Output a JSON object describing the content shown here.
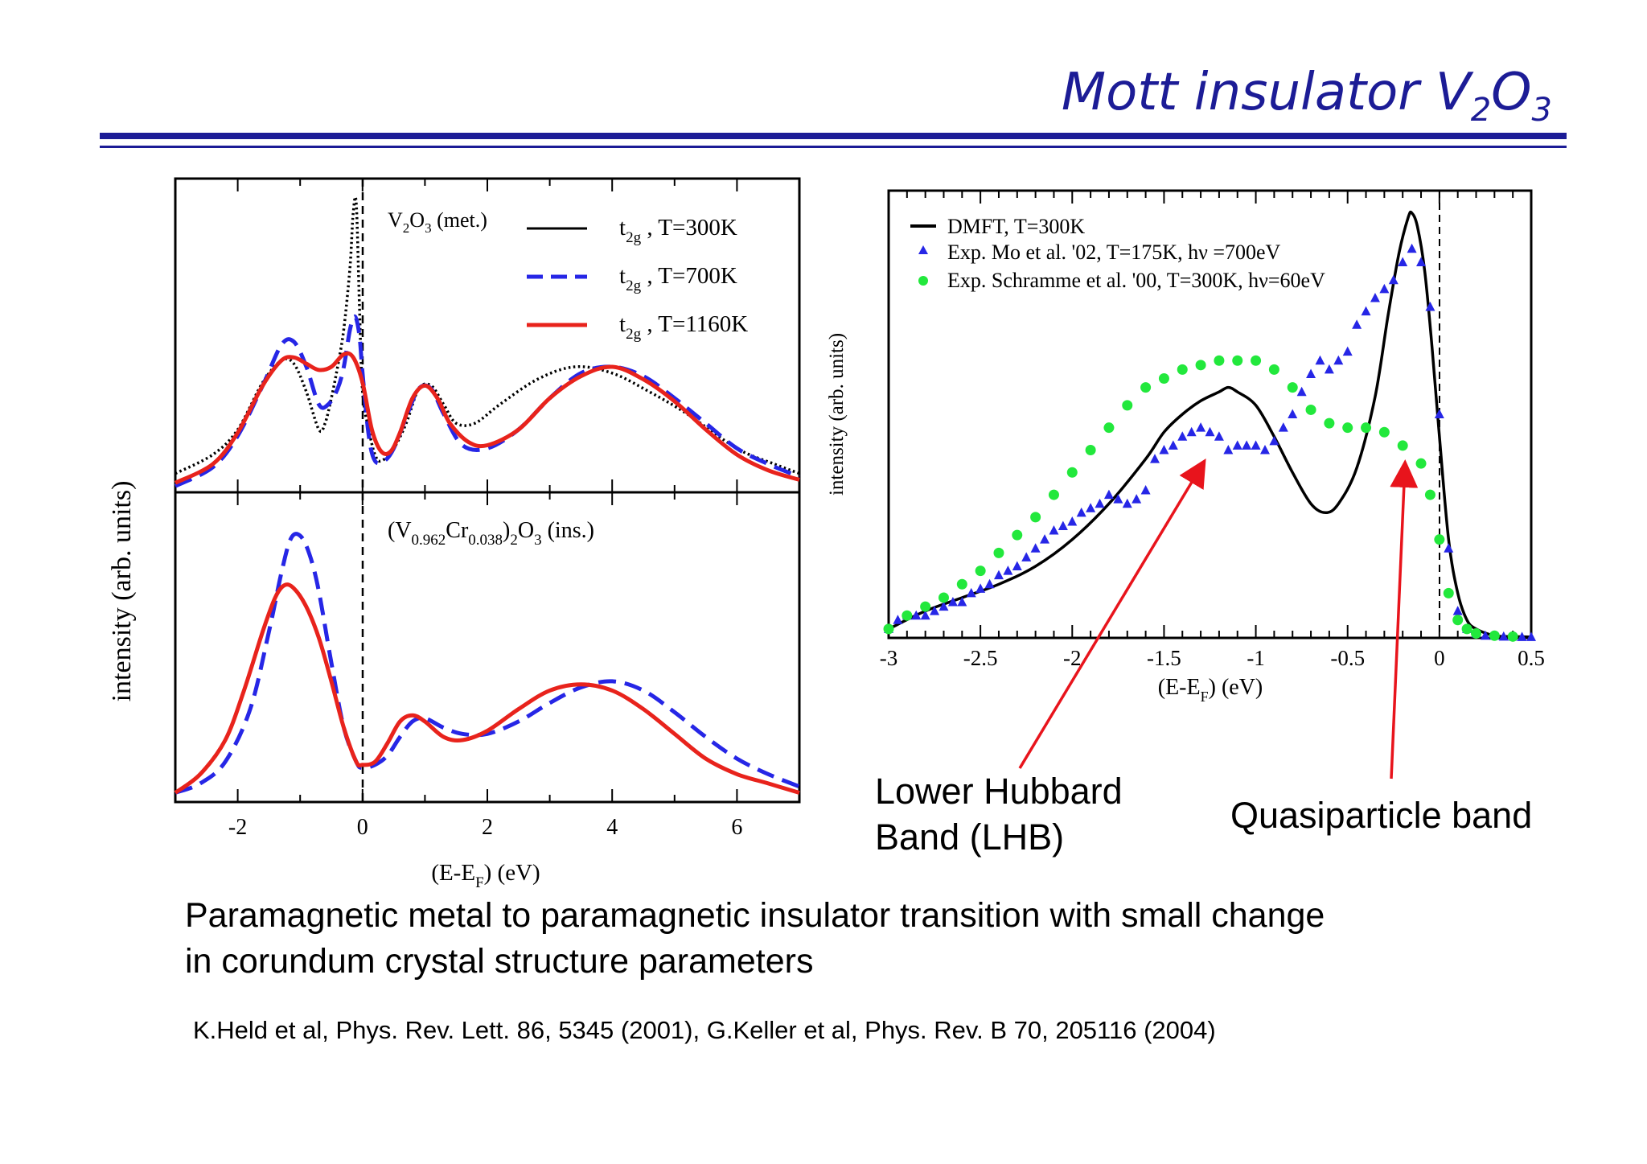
{
  "slide": {
    "title_main": "Mott insulator V",
    "title_sub1": "2",
    "title_mid": "O",
    "title_sub2": "3",
    "callout_lhb_line1": "Lower Hubbard",
    "callout_lhb_line2": "Band (LHB)",
    "callout_qp": "Quasiparticle  band",
    "caption_line1": "Paramagnetic metal to paramagnetic insulator transition with small change",
    "caption_line2": "in corundum crystal structure parameters",
    "reference": "K.Held et al, Phys. Rev. Lett. 86, 5345 (2001), G.Keller et al, Phys. Rev. B 70, 205116 (2004)",
    "colors": {
      "title": "#1c1c96",
      "arrow": "#e8141c"
    }
  },
  "chart_data": [
    {
      "type": "line",
      "panel": "top",
      "ylabel": "intensity (arb. units)",
      "xlim": [
        -3,
        7
      ],
      "ylim": [
        0,
        1
      ],
      "annotation": {
        "base": "V",
        "sub1": "2",
        "mid": "O",
        "sub2": "3",
        "tail": " (met.)"
      },
      "legend_position": "top-right",
      "series": [
        {
          "name_base": "t",
          "name_sub": "2g",
          "name_tail": " , T=300K",
          "color": "#000000",
          "style": "dotted",
          "x": [
            -3,
            -2.4,
            -2,
            -1.6,
            -1.3,
            -1.1,
            -0.9,
            -0.7,
            -0.6,
            -0.5,
            -0.4,
            -0.3,
            -0.2,
            -0.15,
            -0.1,
            -0.05,
            0,
            0.1,
            0.2,
            0.3,
            0.5,
            0.7,
            0.9,
            1.1,
            1.3,
            1.5,
            1.8,
            2.2,
            2.8,
            3.4,
            4,
            4.6,
            5.2,
            6,
            6.6,
            7
          ],
          "y": [
            0.06,
            0.12,
            0.2,
            0.35,
            0.42,
            0.41,
            0.32,
            0.2,
            0.22,
            0.3,
            0.4,
            0.52,
            0.72,
            0.89,
            0.92,
            0.6,
            0.32,
            0.2,
            0.12,
            0.1,
            0.14,
            0.22,
            0.33,
            0.34,
            0.28,
            0.22,
            0.22,
            0.28,
            0.36,
            0.4,
            0.38,
            0.32,
            0.25,
            0.14,
            0.09,
            0.06
          ]
        },
        {
          "name_base": "t",
          "name_sub": "2g",
          "name_tail": " , T=700K",
          "color": "#2626e6",
          "style": "dashed",
          "x": [
            -3,
            -2.4,
            -2,
            -1.6,
            -1.3,
            -1.1,
            -0.9,
            -0.7,
            -0.55,
            -0.4,
            -0.3,
            -0.2,
            -0.12,
            -0.05,
            0,
            0.1,
            0.2,
            0.35,
            0.5,
            0.7,
            0.9,
            1.1,
            1.3,
            1.6,
            2,
            2.5,
            3,
            3.5,
            4,
            4.5,
            5,
            5.5,
            6,
            6.5,
            7
          ],
          "y": [
            0.02,
            0.08,
            0.18,
            0.34,
            0.47,
            0.48,
            0.4,
            0.28,
            0.28,
            0.33,
            0.4,
            0.52,
            0.56,
            0.5,
            0.38,
            0.18,
            0.1,
            0.1,
            0.14,
            0.24,
            0.33,
            0.33,
            0.25,
            0.15,
            0.14,
            0.2,
            0.3,
            0.38,
            0.4,
            0.37,
            0.3,
            0.22,
            0.14,
            0.09,
            0.05
          ]
        },
        {
          "name_base": "t",
          "name_sub": "2g",
          "name_tail": " , T=1160K",
          "color": "#e8231c",
          "style": "solid",
          "x": [
            -3,
            -2.4,
            -2,
            -1.6,
            -1.3,
            -1.1,
            -0.9,
            -0.7,
            -0.5,
            -0.3,
            -0.15,
            0,
            0.15,
            0.3,
            0.45,
            0.6,
            0.8,
            1,
            1.2,
            1.4,
            1.7,
            2,
            2.5,
            3,
            3.5,
            4,
            4.5,
            5,
            5.5,
            6,
            6.5,
            7
          ],
          "y": [
            0.03,
            0.09,
            0.19,
            0.34,
            0.42,
            0.43,
            0.41,
            0.39,
            0.4,
            0.44,
            0.43,
            0.35,
            0.2,
            0.13,
            0.13,
            0.19,
            0.3,
            0.34,
            0.3,
            0.22,
            0.16,
            0.15,
            0.2,
            0.3,
            0.37,
            0.4,
            0.36,
            0.29,
            0.2,
            0.12,
            0.07,
            0.04
          ]
        }
      ]
    },
    {
      "type": "line",
      "panel": "bottom",
      "xlabel_base": "(E-E",
      "xlabel_sub": "F",
      "xlabel_tail": ") (eV)",
      "xlim": [
        -3,
        7
      ],
      "ylim": [
        0,
        1
      ],
      "xticks": [
        "-2",
        "0",
        "2",
        "4",
        "6"
      ],
      "xtick_values": [
        -2,
        0,
        2,
        4,
        6
      ],
      "annotation": {
        "p1": "(V",
        "s1": "0.962",
        "p2": "Cr",
        "s2": "0.038",
        "p3": ")",
        "s3": "2",
        "p4": "O",
        "s4": "3",
        "p5": " (ins.)"
      },
      "series": [
        {
          "name": "",
          "color": "#2626e6",
          "style": "dashed",
          "x": [
            -3,
            -2.6,
            -2.2,
            -1.8,
            -1.5,
            -1.3,
            -1.15,
            -1,
            -0.85,
            -0.7,
            -0.5,
            -0.3,
            -0.1,
            0,
            0.2,
            0.4,
            0.6,
            0.8,
            1,
            1.3,
            1.6,
            2,
            2.5,
            3,
            3.5,
            4,
            4.5,
            5,
            5.5,
            6,
            6.5,
            7
          ],
          "y": [
            0.03,
            0.06,
            0.13,
            0.3,
            0.55,
            0.74,
            0.85,
            0.86,
            0.8,
            0.68,
            0.45,
            0.24,
            0.13,
            0.11,
            0.12,
            0.15,
            0.21,
            0.26,
            0.27,
            0.24,
            0.22,
            0.22,
            0.26,
            0.32,
            0.37,
            0.39,
            0.36,
            0.29,
            0.21,
            0.14,
            0.09,
            0.05
          ]
        },
        {
          "name": "",
          "color": "#e8231c",
          "style": "solid",
          "x": [
            -3,
            -2.6,
            -2.2,
            -1.9,
            -1.6,
            -1.4,
            -1.25,
            -1.1,
            -0.9,
            -0.7,
            -0.5,
            -0.3,
            -0.1,
            0,
            0.2,
            0.4,
            0.6,
            0.8,
            1,
            1.3,
            1.6,
            2,
            2.5,
            3,
            3.5,
            4,
            4.5,
            5,
            5.5,
            6,
            6.5,
            7
          ],
          "y": [
            0.03,
            0.09,
            0.2,
            0.36,
            0.55,
            0.66,
            0.7,
            0.69,
            0.63,
            0.53,
            0.39,
            0.24,
            0.13,
            0.12,
            0.13,
            0.19,
            0.26,
            0.28,
            0.26,
            0.21,
            0.2,
            0.23,
            0.3,
            0.36,
            0.38,
            0.36,
            0.3,
            0.22,
            0.14,
            0.09,
            0.06,
            0.03
          ]
        }
      ]
    },
    {
      "type": "line",
      "panel": "right",
      "ylabel": "intensity (arb. units)",
      "xlabel_base": "(E-E",
      "xlabel_sub": "F",
      "xlabel_tail": ") (eV)",
      "xlim": [
        -3,
        0.5
      ],
      "ylim": [
        0,
        1
      ],
      "xticks": [
        "-3",
        "-2.5",
        "-2",
        "-1.5",
        "-1",
        "-0.5",
        "0",
        "0.5"
      ],
      "xtick_values": [
        -3,
        -2.5,
        -2,
        -1.5,
        -1,
        -0.5,
        0,
        0.5
      ],
      "legend_position": "top-left",
      "series": [
        {
          "name": "DMFT, T=300K",
          "color": "#000000",
          "style": "solid",
          "marker": "line",
          "x": [
            -3,
            -2.8,
            -2.6,
            -2.4,
            -2.2,
            -2,
            -1.8,
            -1.6,
            -1.5,
            -1.4,
            -1.3,
            -1.2,
            -1.15,
            -1.1,
            -1,
            -0.9,
            -0.8,
            -0.7,
            -0.62,
            -0.55,
            -0.45,
            -0.35,
            -0.28,
            -0.22,
            -0.17,
            -0.15,
            -0.12,
            -0.08,
            -0.04,
            0,
            0.05,
            0.1,
            0.15,
            0.2,
            0.3,
            0.4,
            0.5
          ],
          "y": [
            0.02,
            0.06,
            0.09,
            0.12,
            0.16,
            0.22,
            0.3,
            0.4,
            0.46,
            0.5,
            0.53,
            0.55,
            0.56,
            0.55,
            0.52,
            0.45,
            0.37,
            0.3,
            0.28,
            0.3,
            0.38,
            0.54,
            0.72,
            0.86,
            0.94,
            0.95,
            0.92,
            0.82,
            0.65,
            0.45,
            0.22,
            0.1,
            0.04,
            0.02,
            0.005,
            0.003,
            0.002
          ]
        },
        {
          "name": "Exp. Mo et al. '02, T=175K, hν =700eV",
          "color": "#2626e6",
          "style": "none",
          "marker": "triangle",
          "x": [
            -3,
            -2.95,
            -2.9,
            -2.85,
            -2.8,
            -2.75,
            -2.7,
            -2.65,
            -2.6,
            -2.55,
            -2.5,
            -2.45,
            -2.4,
            -2.35,
            -2.3,
            -2.25,
            -2.2,
            -2.15,
            -2.1,
            -2.05,
            -2,
            -1.95,
            -1.9,
            -1.85,
            -1.8,
            -1.75,
            -1.7,
            -1.65,
            -1.6,
            -1.55,
            -1.5,
            -1.45,
            -1.4,
            -1.35,
            -1.3,
            -1.25,
            -1.2,
            -1.15,
            -1.1,
            -1.05,
            -1,
            -0.95,
            -0.9,
            -0.85,
            -0.8,
            -0.75,
            -0.7,
            -0.65,
            -0.6,
            -0.55,
            -0.5,
            -0.45,
            -0.4,
            -0.35,
            -0.3,
            -0.25,
            -0.2,
            -0.15,
            -0.1,
            -0.05,
            0,
            0.05,
            0.1,
            0.15,
            0.2,
            0.25,
            0.3,
            0.35,
            0.4,
            0.45,
            0.5
          ],
          "y": [
            0.02,
            0.04,
            0.05,
            0.05,
            0.05,
            0.06,
            0.07,
            0.08,
            0.08,
            0.1,
            0.11,
            0.12,
            0.14,
            0.15,
            0.16,
            0.18,
            0.2,
            0.22,
            0.24,
            0.25,
            0.26,
            0.28,
            0.29,
            0.3,
            0.32,
            0.31,
            0.3,
            0.31,
            0.33,
            0.4,
            0.42,
            0.43,
            0.45,
            0.46,
            0.47,
            0.46,
            0.45,
            0.42,
            0.43,
            0.43,
            0.43,
            0.42,
            0.44,
            0.47,
            0.5,
            0.55,
            0.59,
            0.62,
            0.6,
            0.62,
            0.64,
            0.7,
            0.73,
            0.76,
            0.78,
            0.8,
            0.84,
            0.87,
            0.84,
            0.74,
            0.5,
            0.2,
            0.06,
            0.02,
            0.01,
            0.005,
            0.005,
            0.003,
            0.003,
            0.002,
            0.002
          ]
        },
        {
          "name": "Exp. Schramme et al. '00, T=300K, hν=60eV",
          "color": "#22e83c",
          "style": "none",
          "marker": "circle",
          "x": [
            -3,
            -2.9,
            -2.8,
            -2.7,
            -2.6,
            -2.5,
            -2.4,
            -2.3,
            -2.2,
            -2.1,
            -2,
            -1.9,
            -1.8,
            -1.7,
            -1.6,
            -1.5,
            -1.4,
            -1.3,
            -1.2,
            -1.1,
            -1,
            -0.9,
            -0.8,
            -0.7,
            -0.6,
            -0.5,
            -0.4,
            -0.3,
            -0.2,
            -0.1,
            -0.05,
            0,
            0.05,
            0.1,
            0.15,
            0.2,
            0.3,
            0.4
          ],
          "y": [
            0.02,
            0.05,
            0.07,
            0.09,
            0.12,
            0.15,
            0.19,
            0.23,
            0.27,
            0.32,
            0.37,
            0.42,
            0.47,
            0.52,
            0.56,
            0.58,
            0.6,
            0.61,
            0.62,
            0.62,
            0.62,
            0.6,
            0.56,
            0.51,
            0.48,
            0.47,
            0.47,
            0.46,
            0.43,
            0.39,
            0.32,
            0.22,
            0.1,
            0.04,
            0.02,
            0.01,
            0.005,
            0.003
          ]
        }
      ]
    }
  ]
}
